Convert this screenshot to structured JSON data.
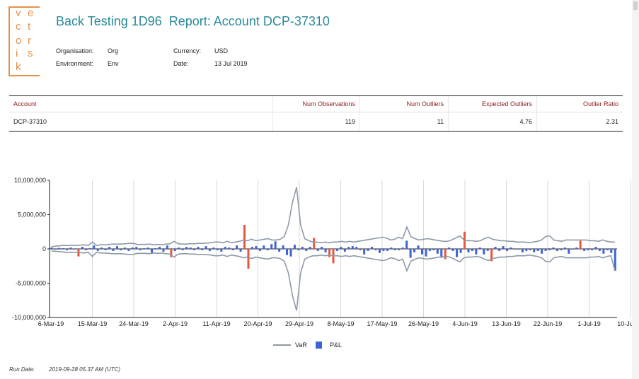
{
  "logo": {
    "letters": [
      "v",
      "e",
      "c",
      "t",
      "o",
      "r",
      "i",
      "s",
      "k"
    ]
  },
  "report": {
    "title": "Back Testing 1D96  Report: Account DCP-37310",
    "org_label": "Organisation:",
    "org_value": "Org",
    "env_label": "Environment:",
    "env_value": "Env",
    "currency_label": "Currency:",
    "currency_value": "USD",
    "date_label": "Date:",
    "date_value": "13 Jul 2019"
  },
  "summary": {
    "headers": [
      "Account",
      "Num Observations",
      "Num Outliers",
      "Expected Outliers",
      "Outlier Ratio"
    ],
    "row": [
      "DCP-37310",
      "119",
      "11",
      "4.76",
      "2.31"
    ]
  },
  "chart_data": {
    "type": "bar",
    "x_labels": [
      "6-Mar-19",
      "15-Mar-19",
      "24-Mar-19",
      "2-Apr-19",
      "11-Apr-19",
      "20-Apr-19",
      "29-Apr-19",
      "8-May-19",
      "17-May-19",
      "26-May-19",
      "4-Jun-19",
      "13-Jun-19",
      "22-Jun-19",
      "1-Jul-19",
      "10-Jul-19"
    ],
    "y_ticks": [
      "10,000,000",
      "5,000,000",
      "0",
      "-5,000,000",
      "-10,000,000"
    ],
    "ylim": [
      -10000000,
      10000000
    ],
    "legend": [
      "VaR",
      "P&L"
    ],
    "colors": {
      "var_line": "#8e9aa8",
      "pnl": "#3d63d8",
      "outlier": "#e8563f"
    },
    "var_upper": [
      300000,
      400000,
      450000,
      500000,
      500000,
      500000,
      500000,
      550000,
      600000,
      500000,
      1000000,
      500000,
      600000,
      600000,
      650000,
      700000,
      700000,
      700000,
      750000,
      800000,
      800000,
      650000,
      650000,
      650000,
      700000,
      600000,
      650000,
      600000,
      700000,
      750000,
      1100000,
      750000,
      700000,
      700000,
      750000,
      750000,
      800000,
      800000,
      850000,
      900000,
      1000000,
      1000000,
      900000,
      1100000,
      900000,
      1000000,
      1100000,
      1300000,
      1200000,
      1400000,
      1200000,
      1300000,
      1400000,
      1500000,
      1300000,
      1300000,
      1400000,
      1800000,
      3500000,
      6800000,
      9000000,
      3500000,
      1500000,
      1200000,
      1000000,
      1000000,
      900000,
      1000000,
      900000,
      1000000,
      1000000,
      1100000,
      1000000,
      1100000,
      1000000,
      1100000,
      1200000,
      1300000,
      1400000,
      1500000,
      1600000,
      1700000,
      1600000,
      1300000,
      1400000,
      1700000,
      1500000,
      3200000,
      1800000,
      1500000,
      1300000,
      1400000,
      1500000,
      1400000,
      1300000,
      1200000,
      1100000,
      1100000,
      1300000,
      1600000,
      1900000,
      1300000,
      1200000,
      1200000,
      1100000,
      1200000,
      1500000,
      1700000,
      1400000,
      1300000,
      1200000,
      1200000,
      1100000,
      1100000,
      1000000,
      1000000,
      1000000,
      900000,
      1000000,
      1100000,
      1300000,
      1800000,
      1900000,
      1300000,
      1200000,
      1100000,
      1300000,
      1300000,
      1300000,
      1300000,
      1300000,
      1300000,
      1200000,
      1200000,
      1100000,
      1300000,
      1100000,
      1000000,
      1000000
    ],
    "var_lower": [
      -300000,
      -350000,
      -400000,
      -450000,
      -500000,
      -500000,
      -500000,
      -550000,
      -600000,
      -500000,
      -1100000,
      -500000,
      -600000,
      -600000,
      -650000,
      -700000,
      -700000,
      -700000,
      -750000,
      -800000,
      -800000,
      -650000,
      -650000,
      -650000,
      -700000,
      -600000,
      -650000,
      -600000,
      -700000,
      -750000,
      -1200000,
      -750000,
      -700000,
      -700000,
      -750000,
      -750000,
      -800000,
      -800000,
      -850000,
      -900000,
      -1000000,
      -1000000,
      -900000,
      -1100000,
      -900000,
      -1000000,
      -1100000,
      -1300000,
      -1200000,
      -1400000,
      -1200000,
      -1300000,
      -1400000,
      -1500000,
      -1300000,
      -1300000,
      -1400000,
      -1800000,
      -3500000,
      -6800000,
      -9000000,
      -3500000,
      -1500000,
      -1200000,
      -1000000,
      -1000000,
      -900000,
      -1000000,
      -900000,
      -1000000,
      -1000000,
      -1100000,
      -1000000,
      -1100000,
      -1000000,
      -1100000,
      -1200000,
      -1300000,
      -1400000,
      -1500000,
      -1600000,
      -1700000,
      -1600000,
      -1300000,
      -1400000,
      -1700000,
      -1500000,
      -3200000,
      -1800000,
      -1500000,
      -1300000,
      -1400000,
      -1500000,
      -1400000,
      -1300000,
      -1200000,
      -1100000,
      -1100000,
      -1300000,
      -1600000,
      -1900000,
      -1300000,
      -1200000,
      -1200000,
      -1100000,
      -1200000,
      -1500000,
      -1700000,
      -1400000,
      -1300000,
      -1200000,
      -1200000,
      -1100000,
      -1100000,
      -1000000,
      -1000000,
      -1000000,
      -900000,
      -1000000,
      -1100000,
      -1300000,
      -1800000,
      -1900000,
      -1300000,
      -1200000,
      -1100000,
      -1300000,
      -1300000,
      -1300000,
      -1300000,
      -1300000,
      -1300000,
      -1200000,
      -1200000,
      -1100000,
      -1300000,
      -1100000,
      -1000000,
      -3200000
    ],
    "pnl": [
      200000,
      -100000,
      150000,
      100000,
      -200000,
      200000,
      -100000,
      -1100000,
      300000,
      -200000,
      100000,
      500000,
      -300000,
      200000,
      -200000,
      300000,
      -300000,
      400000,
      -200000,
      200000,
      -300000,
      200000,
      300000,
      -200000,
      100000,
      200000,
      -600000,
      100000,
      300000,
      -400000,
      500000,
      -1200000,
      -300000,
      200000,
      -200000,
      300000,
      200000,
      -200000,
      300000,
      -200000,
      400000,
      -300000,
      200000,
      -200000,
      -400000,
      300000,
      200000,
      -200000,
      500000,
      -400000,
      3500000,
      -2900000,
      300000,
      400000,
      -300000,
      500000,
      -200000,
      700000,
      1100000,
      -400000,
      500000,
      -900000,
      -1100000,
      600000,
      -200000,
      300000,
      -300000,
      300000,
      1600000,
      -300000,
      300000,
      -500000,
      -1200000,
      -2100000,
      -300000,
      300000,
      -400000,
      300000,
      400000,
      300000,
      -200000,
      -800000,
      -300000,
      300000,
      -200000,
      -600000,
      -300000,
      -300000,
      200000,
      -200000,
      -200000,
      200000,
      1200000,
      -1300000,
      -500000,
      500000,
      -800000,
      -1100000,
      -300000,
      -200000,
      -700000,
      -1300000,
      -1500000,
      200000,
      -300000,
      -1200000,
      -600000,
      2500000,
      -500000,
      -300000,
      -800000,
      200000,
      -800000,
      -300000,
      -1800000,
      300000,
      -300000,
      400000,
      -300000,
      200000,
      -100000,
      -100000,
      -500000,
      -300000,
      -200000,
      -500000,
      -300000,
      -700000,
      -300000,
      -200000,
      200000,
      -300000,
      -200000,
      200000,
      -700000,
      -100000,
      200000,
      1200000,
      -300000,
      -200000,
      -200000,
      300000,
      -300000,
      -700000,
      -200000,
      -600000,
      -3200000
    ]
  },
  "footer": {
    "run_date_label": "Run Date:",
    "run_date_value": "2019-09-28 05.37 AM (UTC)"
  }
}
